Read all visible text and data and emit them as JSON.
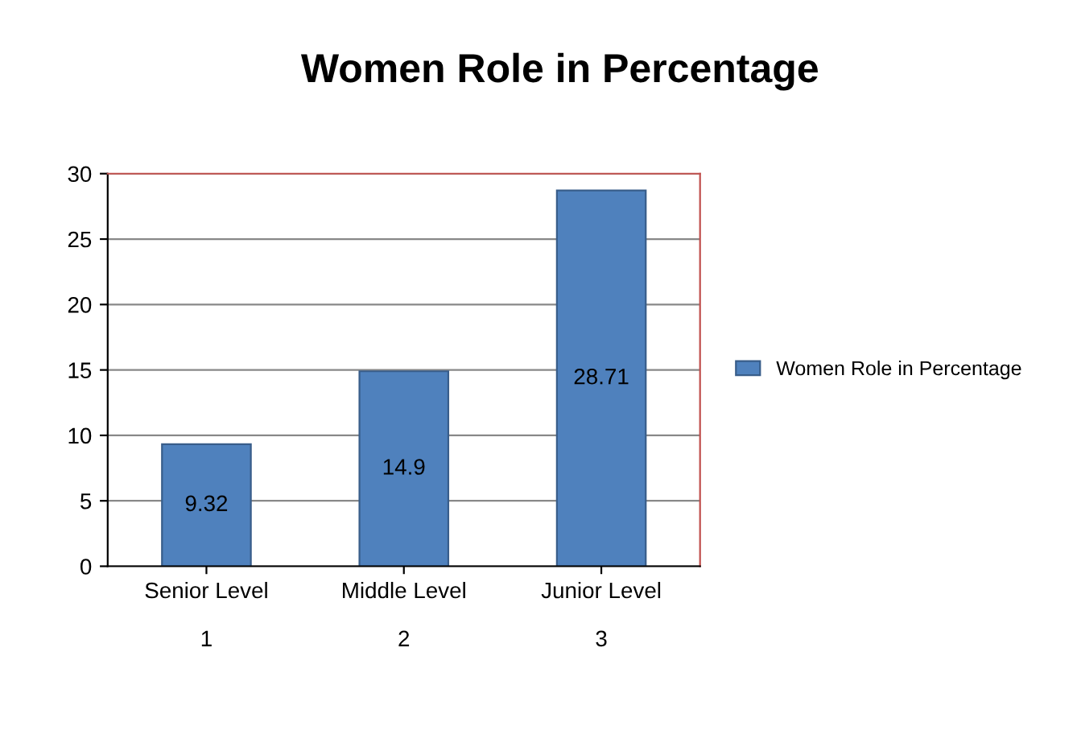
{
  "chart_data": {
    "type": "bar",
    "title": "Women Role in Percentage",
    "categories": [
      "Senior Level\n\n1",
      "Middle Level\n\n2",
      "Junior Level\n\n3"
    ],
    "series": [
      {
        "name": "Women Role in Percentage",
        "color": "#4f81bd",
        "values": [
          9.32,
          14.9,
          28.71
        ]
      }
    ],
    "ylim": [
      0,
      30
    ],
    "yticks": [
      0,
      5,
      10,
      15,
      20,
      25,
      30
    ],
    "grid": "y",
    "legend": "right",
    "data_labels": true
  }
}
